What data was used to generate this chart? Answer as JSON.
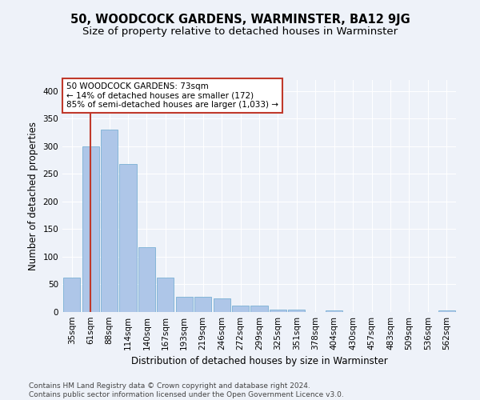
{
  "title": "50, WOODCOCK GARDENS, WARMINSTER, BA12 9JG",
  "subtitle": "Size of property relative to detached houses in Warminster",
  "xlabel": "Distribution of detached houses by size in Warminster",
  "ylabel": "Number of detached properties",
  "categories": [
    "35sqm",
    "61sqm",
    "88sqm",
    "114sqm",
    "140sqm",
    "167sqm",
    "193sqm",
    "219sqm",
    "246sqm",
    "272sqm",
    "299sqm",
    "325sqm",
    "351sqm",
    "378sqm",
    "404sqm",
    "430sqm",
    "457sqm",
    "483sqm",
    "509sqm",
    "536sqm",
    "562sqm"
  ],
  "values": [
    63,
    300,
    330,
    268,
    118,
    63,
    27,
    27,
    25,
    12,
    12,
    5,
    4,
    0,
    3,
    0,
    0,
    0,
    0,
    0,
    3
  ],
  "bar_color": "#aec6e8",
  "bar_edge_color": "#7ab0d4",
  "vline_x": 1.0,
  "vline_color": "#c0392b",
  "annotation_text": "50 WOODCOCK GARDENS: 73sqm\n← 14% of detached houses are smaller (172)\n85% of semi-detached houses are larger (1,033) →",
  "annotation_box_color": "#ffffff",
  "annotation_box_edge_color": "#c0392b",
  "ylim": [
    0,
    420
  ],
  "yticks": [
    0,
    50,
    100,
    150,
    200,
    250,
    300,
    350,
    400
  ],
  "background_color": "#eef2f9",
  "footer": "Contains HM Land Registry data © Crown copyright and database right 2024.\nContains public sector information licensed under the Open Government Licence v3.0.",
  "title_fontsize": 10.5,
  "subtitle_fontsize": 9.5,
  "xlabel_fontsize": 8.5,
  "ylabel_fontsize": 8.5,
  "tick_fontsize": 7.5,
  "footer_fontsize": 6.5,
  "annot_fontsize": 7.5
}
